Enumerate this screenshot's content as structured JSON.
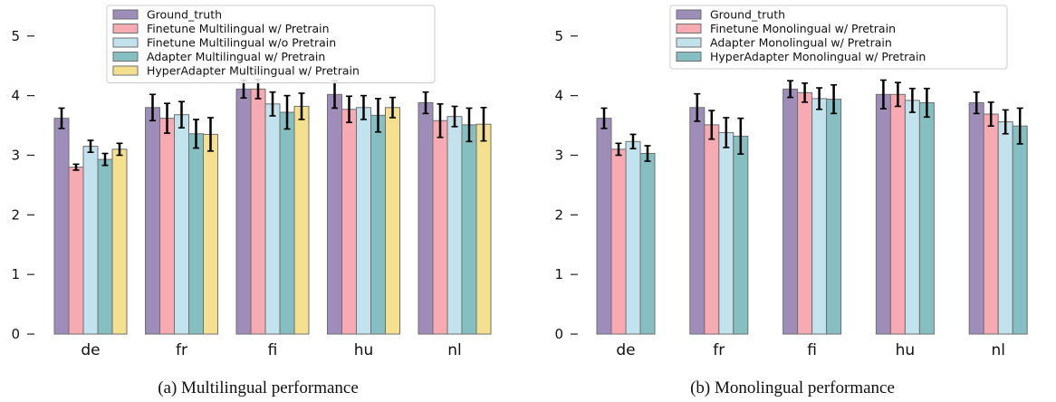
{
  "chart_data": [
    {
      "type": "bar",
      "caption": "(a) Multilingual performance",
      "categories": [
        "de",
        "fr",
        "fi",
        "hu",
        "nl"
      ],
      "ylim": [
        0,
        5.3
      ],
      "yticks": [
        0,
        1,
        2,
        3,
        4,
        5
      ],
      "grid": false,
      "legend_position": "top-center",
      "series": [
        {
          "name": "Ground_truth",
          "color": "#9d8db8",
          "values": [
            3.62,
            3.8,
            4.11,
            4.02,
            3.88
          ],
          "errors": [
            0.17,
            0.22,
            0.15,
            0.23,
            0.18
          ]
        },
        {
          "name": "Finetune Multilingual w/ Pretrain",
          "color": "#f7aab2",
          "values": [
            2.8,
            3.62,
            4.11,
            3.77,
            3.58
          ],
          "errors": [
            0.05,
            0.25,
            0.16,
            0.22,
            0.28
          ]
        },
        {
          "name": "Finetune Multilingual w/o Pretrain",
          "color": "#c2e2ee",
          "values": [
            3.15,
            3.68,
            3.86,
            3.8,
            3.65
          ],
          "errors": [
            0.1,
            0.22,
            0.2,
            0.2,
            0.17
          ]
        },
        {
          "name": "Adapter Multilingual w/ Pretrain",
          "color": "#86bfc2",
          "values": [
            2.93,
            3.36,
            3.72,
            3.67,
            3.51
          ],
          "errors": [
            0.1,
            0.24,
            0.28,
            0.28,
            0.28
          ]
        },
        {
          "name": "HyperAdapter Multilingual w/ Pretrain",
          "color": "#f4e08e",
          "values": [
            3.1,
            3.35,
            3.82,
            3.8,
            3.52
          ],
          "errors": [
            0.1,
            0.28,
            0.22,
            0.17,
            0.28
          ]
        }
      ]
    },
    {
      "type": "bar",
      "caption": "(b) Monolingual performance",
      "categories": [
        "de",
        "fr",
        "fi",
        "hu",
        "nl"
      ],
      "ylim": [
        0,
        5.3
      ],
      "yticks": [
        0,
        1,
        2,
        3,
        4,
        5
      ],
      "grid": false,
      "legend_position": "top-center",
      "series": [
        {
          "name": "Ground_truth",
          "color": "#9d8db8",
          "values": [
            3.62,
            3.8,
            4.11,
            4.02,
            3.88
          ],
          "errors": [
            0.17,
            0.23,
            0.14,
            0.24,
            0.18
          ]
        },
        {
          "name": "Finetune Monolingual w/ Pretrain",
          "color": "#f7aab2",
          "values": [
            3.1,
            3.51,
            4.05,
            4.02,
            3.69
          ],
          "errors": [
            0.1,
            0.24,
            0.16,
            0.2,
            0.2
          ]
        },
        {
          "name": "Adapter Monolingual w/ Pretrain",
          "color": "#c2e2ee",
          "values": [
            3.23,
            3.38,
            3.95,
            3.92,
            3.56
          ],
          "errors": [
            0.12,
            0.25,
            0.18,
            0.2,
            0.2
          ]
        },
        {
          "name": "HyperAdapter Monolingual w/ Pretrain",
          "color": "#86bfc2",
          "values": [
            3.03,
            3.32,
            3.94,
            3.88,
            3.49
          ],
          "errors": [
            0.13,
            0.3,
            0.24,
            0.24,
            0.3
          ]
        }
      ]
    }
  ]
}
